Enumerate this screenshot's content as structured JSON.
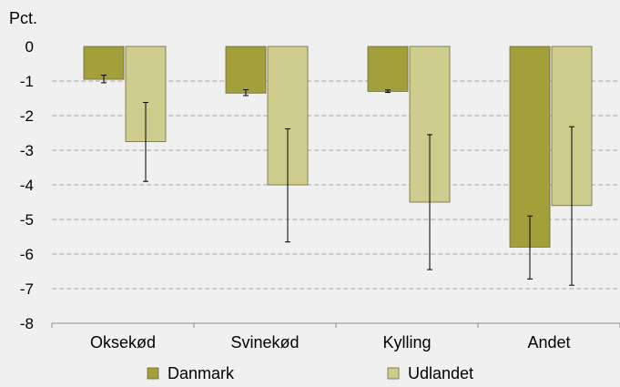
{
  "chart_data": {
    "type": "bar",
    "unit_label": "Pct.",
    "categories": [
      "Oksekød",
      "Svinekød",
      "Kylling",
      "Andet"
    ],
    "ylim": [
      -8,
      0
    ],
    "yticks": [
      0,
      -1,
      -2,
      -3,
      -4,
      -5,
      -6,
      -7,
      -8
    ],
    "grid": true,
    "legend_position": "bottom",
    "series": [
      {
        "name": "Danmark",
        "color": "#a3a03c",
        "values": [
          -0.95,
          -1.35,
          -1.3,
          -5.8
        ],
        "error_low": [
          -1.05,
          -1.42,
          -1.33,
          -6.72
        ],
        "error_high": [
          -0.83,
          -1.25,
          -1.26,
          -4.9
        ]
      },
      {
        "name": "Udlandet",
        "color": "#cfcd8e",
        "values": [
          -2.75,
          -4.0,
          -4.5,
          -4.6
        ],
        "error_low": [
          -3.9,
          -5.65,
          -6.45,
          -6.9
        ],
        "error_high": [
          -1.62,
          -2.38,
          -2.55,
          -2.32
        ]
      }
    ]
  }
}
